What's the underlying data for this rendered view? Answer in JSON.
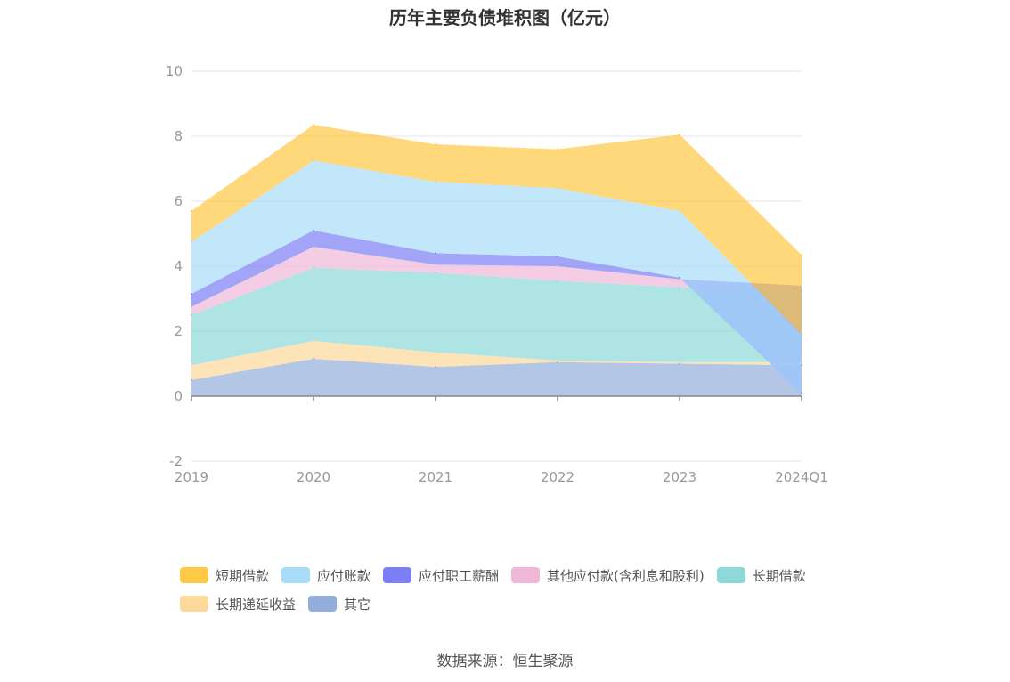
{
  "chart_data": {
    "type": "area",
    "title": "历年主要负债堆积图（亿元）",
    "categories": [
      "2019",
      "2020",
      "2021",
      "2022",
      "2023",
      "2024Q1"
    ],
    "ylim": [
      -2,
      10
    ],
    "yticks": [
      -2,
      0,
      2,
      4,
      6,
      8,
      10
    ],
    "grid": true,
    "legend_position": "bottom",
    "series": [
      {
        "name": "其它",
        "color": "#93aedc",
        "values": [
          0.5,
          1.15,
          0.9,
          1.05,
          1.0,
          0.95
        ]
      },
      {
        "name": "长期递延收益",
        "color": "#fcd89a",
        "values": [
          0.45,
          0.55,
          0.45,
          0.05,
          0.05,
          0.1
        ]
      },
      {
        "name": "长期借款",
        "color": "#8dd8d8",
        "values": [
          1.55,
          2.25,
          2.45,
          2.45,
          2.3,
          2.3
        ]
      },
      {
        "name": "其他应付款(含利息和股利)",
        "color": "#f0b8d8",
        "values": [
          0.25,
          0.65,
          0.25,
          0.45,
          0.25,
          0.05
        ]
      },
      {
        "name": "应付职工薪酬",
        "color": "#7b7ef5",
        "values": [
          0.4,
          0.5,
          0.35,
          0.3,
          0.05,
          -3.3
        ]
      },
      {
        "name": "应付账款",
        "color": "#a8dcf8",
        "values": [
          1.6,
          2.15,
          2.2,
          2.1,
          2.05,
          1.8
        ]
      },
      {
        "name": "短期借款",
        "color": "#ffc845",
        "values": [
          0.95,
          1.1,
          1.15,
          1.2,
          2.35,
          2.45
        ]
      }
    ]
  },
  "legend": {
    "items": [
      {
        "label": "短期借款",
        "color": "#ffc845"
      },
      {
        "label": "应付账款",
        "color": "#a8dcf8"
      },
      {
        "label": "应付职工薪酬",
        "color": "#7b7ef5"
      },
      {
        "label": "其他应付款(含利息和股利)",
        "color": "#f0b8d8"
      },
      {
        "label": "长期借款",
        "color": "#8dd8d8"
      },
      {
        "label": "长期递延收益",
        "color": "#fcd89a"
      },
      {
        "label": "其它",
        "color": "#93aedc"
      }
    ]
  },
  "source": "数据来源：恒生聚源"
}
